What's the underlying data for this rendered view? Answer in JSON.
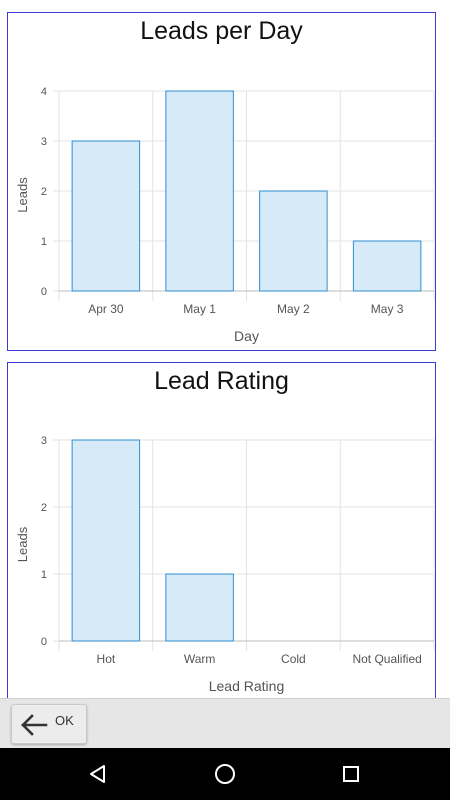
{
  "charts": [
    {
      "title": "Leads per Day",
      "xlabel": "Day",
      "ylabel": "Leads"
    },
    {
      "title": "Lead Rating",
      "xlabel": "Lead Rating",
      "ylabel": "Leads"
    }
  ],
  "chart_data": [
    {
      "type": "bar",
      "title": "Leads per Day",
      "xlabel": "Day",
      "ylabel": "Leads",
      "categories": [
        "Apr 30",
        "May 1",
        "May 2",
        "May 3"
      ],
      "values": [
        3,
        4,
        2,
        1
      ],
      "ylim": [
        0,
        4
      ],
      "yticks": [
        0,
        1,
        2,
        3,
        4
      ],
      "grid": true,
      "bar_fill": "#d6eaf8",
      "bar_stroke": "#2e8fd0"
    },
    {
      "type": "bar",
      "title": "Lead Rating",
      "xlabel": "Lead Rating",
      "ylabel": "Leads",
      "categories": [
        "Hot",
        "Warm",
        "Cold",
        "Not Qualified"
      ],
      "values": [
        3,
        1,
        0,
        0
      ],
      "ylim": [
        0,
        3
      ],
      "yticks": [
        0,
        1,
        2,
        3
      ],
      "grid": true,
      "bar_fill": "#d6eaf8",
      "bar_stroke": "#2e8fd0"
    }
  ],
  "bottom_bar": {
    "ok_label": "OK",
    "ok_icon": "arrow-left-icon"
  },
  "nav": {
    "back_icon": "back-triangle-icon",
    "home_icon": "home-circle-icon",
    "recent_icon": "recent-square-icon"
  },
  "colors": {
    "card_border": "#3a3ad6",
    "bar_fill": "#d6eaf8",
    "bar_stroke": "#2e8fd0",
    "grid": "#e3e3e3",
    "nav_bg": "#000000",
    "bottom_bar_bg": "#e6e6e6"
  }
}
